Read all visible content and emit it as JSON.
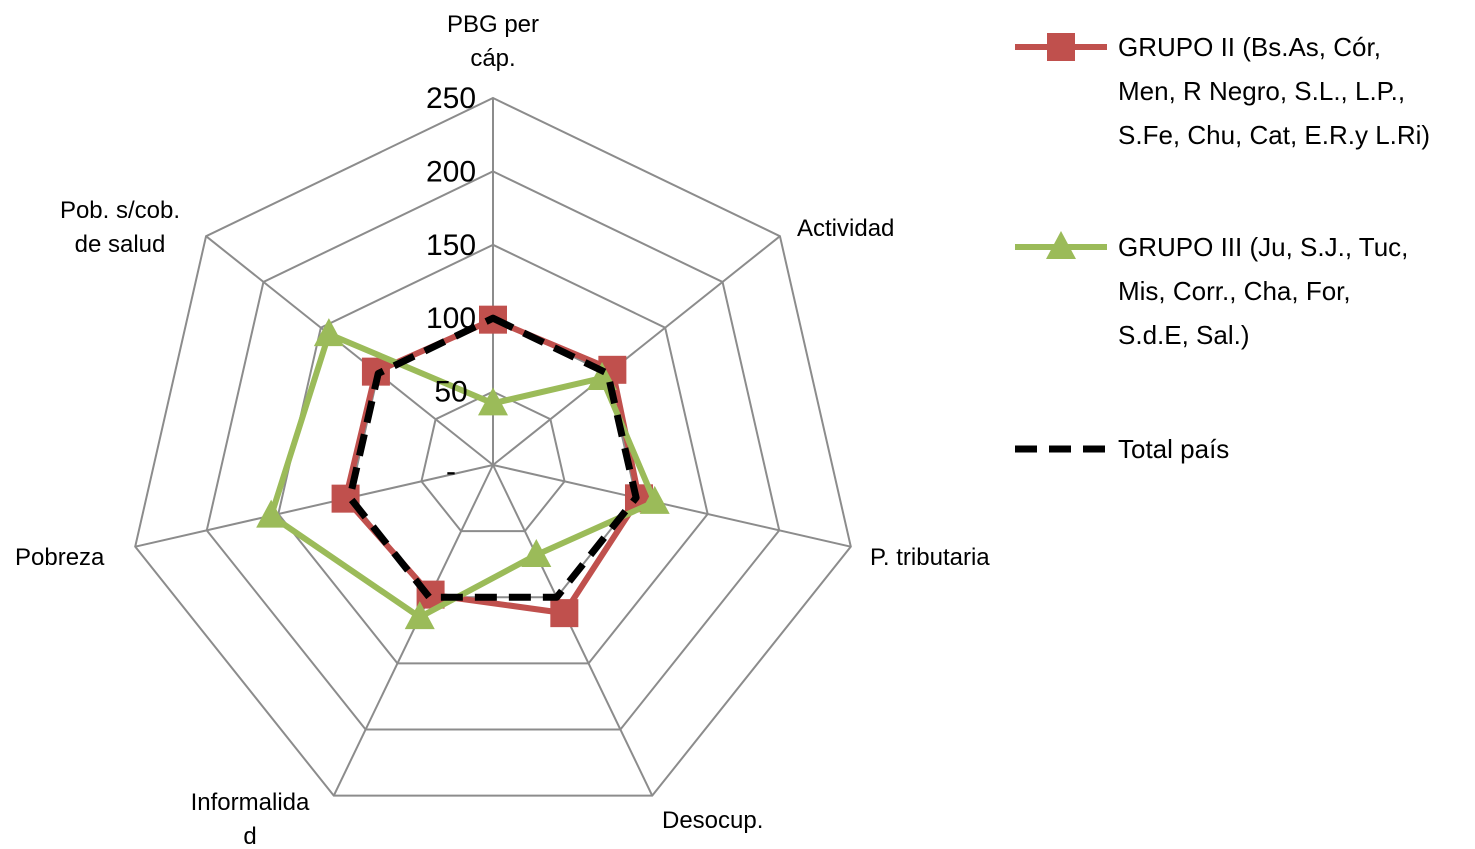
{
  "chart_data": {
    "type": "radar",
    "axes": [
      [
        "PBG per",
        "cáp."
      ],
      [
        "Actividad"
      ],
      [
        "P. tributaria"
      ],
      [
        "Desocup."
      ],
      [
        "Informalida",
        "d"
      ],
      [
        "Pobreza"
      ],
      [
        "Pob. s/cob.",
        "de salud"
      ]
    ],
    "rlim": [
      0,
      250
    ],
    "ticks": [
      "-",
      "50",
      "100",
      "150",
      "200",
      "250"
    ],
    "tick_values": [
      0,
      50,
      100,
      150,
      200,
      250
    ],
    "grid": true,
    "legend_position": "right",
    "series": [
      {
        "name_lines": [
          "GRUPO II (Bs.As, Cór,",
          "Men, R Negro, S.L., L.P.,",
          "S.Fe, Chu, Cat, E.R.y  L.Ri)"
        ],
        "color": "#c0504d",
        "marker": "square",
        "values": [
          99,
          104,
          102,
          112,
          98,
          103,
          102
        ]
      },
      {
        "name_lines": [
          "GRUPO III (Ju, S.J., Tuc,",
          "Mis, Corr., Cha, For,",
          "S.d.E, Sal.)"
        ],
        "color": "#9bbb59",
        "marker": "triangle",
        "values": [
          42,
          95,
          113,
          68,
          115,
          155,
          143
        ]
      },
      {
        "name_lines": [
          "Total país"
        ],
        "color": "#000000",
        "marker": "none",
        "dash": true,
        "values": [
          100,
          100,
          100,
          100,
          100,
          100,
          100
        ]
      }
    ]
  }
}
